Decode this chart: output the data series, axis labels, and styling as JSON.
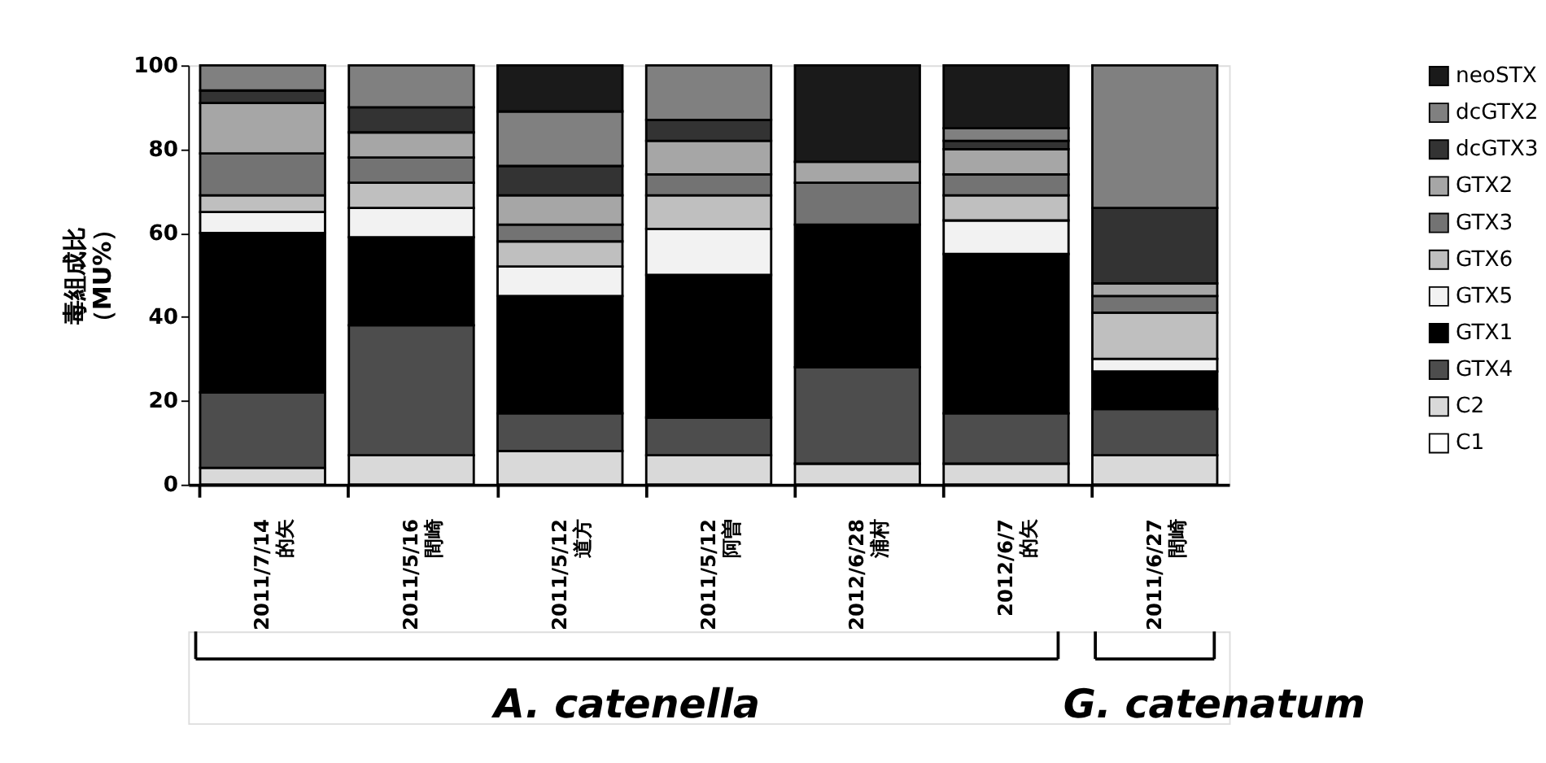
{
  "chart_data": {
    "type": "bar",
    "stacked": true,
    "ylabel": "毒組成比（MU%）",
    "categories": [
      "2011/7/14\n的矢",
      "2011/5/16\n間崎",
      "2011/5/12\n道方",
      "2011/5/12\n阿曽",
      "2012/6/28\n浦村",
      "2012/6/7\n的矢",
      "2011/6/27\n間崎"
    ],
    "series": [
      {
        "name": "C1",
        "color": "#ffffff",
        "values": [
          0,
          0,
          0,
          0,
          0,
          0,
          0
        ]
      },
      {
        "name": "C2",
        "color": "#d9d9d9",
        "values": [
          4,
          7,
          8,
          7,
          5,
          5,
          7
        ]
      },
      {
        "name": "GTX4",
        "color": "#4d4d4d",
        "values": [
          18,
          31,
          9,
          9,
          23,
          12,
          11
        ]
      },
      {
        "name": "GTX1",
        "color": "#000000",
        "values": [
          38,
          21,
          28,
          34,
          34,
          38,
          9
        ]
      },
      {
        "name": "GTX5",
        "color": "#f2f2f2",
        "values": [
          5,
          7,
          7,
          11,
          0,
          8,
          3
        ]
      },
      {
        "name": "GTX6",
        "color": "#bfbfbf",
        "values": [
          4,
          6,
          6,
          8,
          0,
          6,
          11
        ]
      },
      {
        "name": "GTX3",
        "color": "#737373",
        "values": [
          10,
          6,
          4,
          5,
          10,
          5,
          4
        ]
      },
      {
        "name": "GTX2",
        "color": "#a6a6a6",
        "values": [
          12,
          6,
          7,
          8,
          5,
          6,
          3
        ]
      },
      {
        "name": "dcGTX3",
        "color": "#333333",
        "values": [
          3,
          6,
          7,
          5,
          0,
          2,
          18
        ]
      },
      {
        "name": "dcGTX2",
        "color": "#808080",
        "values": [
          6,
          10,
          13,
          13,
          0,
          3,
          34
        ]
      },
      {
        "name": "neoSTX",
        "color": "#1a1a1a",
        "values": [
          0,
          0,
          11,
          0,
          23,
          15,
          0
        ]
      }
    ],
    "ylim": [
      0,
      100
    ],
    "yticks": [
      0,
      20,
      40,
      60,
      80,
      100
    ],
    "grid": false,
    "legend": "right",
    "annotations": [
      "A. catenella",
      "G. catenatum"
    ]
  }
}
